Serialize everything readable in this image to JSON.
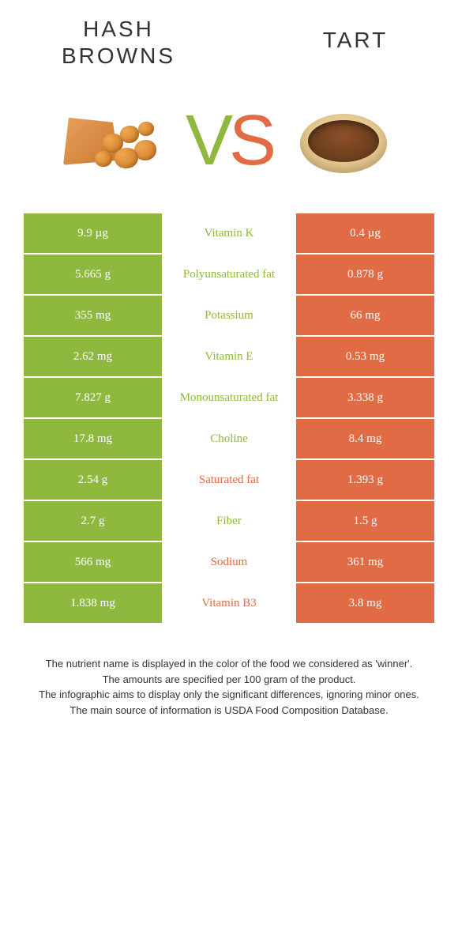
{
  "header": {
    "left_title": "Hash browns",
    "right_title": "Tart",
    "vs_v": "V",
    "vs_s": "S"
  },
  "colors": {
    "left": "#8fb93e",
    "right": "#e16b44",
    "background": "#ffffff"
  },
  "rows": [
    {
      "left": "9.9 µg",
      "label": "Vitamin K",
      "right": "0.4 µg",
      "winner": "left"
    },
    {
      "left": "5.665 g",
      "label": "Polyunsaturated fat",
      "right": "0.878 g",
      "winner": "left"
    },
    {
      "left": "355 mg",
      "label": "Potassium",
      "right": "66 mg",
      "winner": "left"
    },
    {
      "left": "2.62 mg",
      "label": "Vitamin E",
      "right": "0.53 mg",
      "winner": "left"
    },
    {
      "left": "7.827 g",
      "label": "Monounsaturated fat",
      "right": "3.338 g",
      "winner": "left"
    },
    {
      "left": "17.8 mg",
      "label": "Choline",
      "right": "8.4 mg",
      "winner": "left"
    },
    {
      "left": "2.54 g",
      "label": "Saturated fat",
      "right": "1.393 g",
      "winner": "right"
    },
    {
      "left": "2.7 g",
      "label": "Fiber",
      "right": "1.5 g",
      "winner": "left"
    },
    {
      "left": "566 mg",
      "label": "Sodium",
      "right": "361 mg",
      "winner": "right"
    },
    {
      "left": "1.838 mg",
      "label": "Vitamin B3",
      "right": "3.8 mg",
      "winner": "right"
    }
  ],
  "footer": {
    "line1": "The nutrient name is displayed in the color of the food we considered as 'winner'.",
    "line2": "The amounts are specified per 100 gram of the product.",
    "line3": "The infographic aims to display only the significant differences, ignoring minor ones.",
    "line4": "The main source of information is USDA Food Composition Database."
  }
}
